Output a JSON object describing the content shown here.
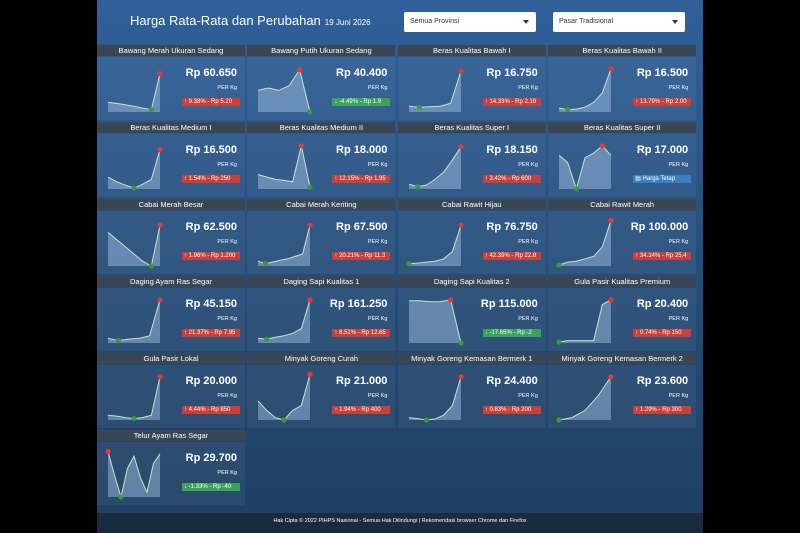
{
  "header": {
    "title": "Harga Rata-Rata dan Perubahan",
    "date": "19 Juni 2026"
  },
  "filters": [
    "Semua Provinsi",
    "Pasar Tradisional"
  ],
  "cards": [
    {
      "name": "Bawang Merah Ukuran Sedang",
      "price": "Rp 60.650",
      "unit": "PER Kg",
      "direction": "up",
      "change": "9.38% - Rp 5.20",
      "spark": [
        20,
        18,
        15,
        12,
        8,
        5,
        80
      ]
    },
    {
      "name": "Bawang Putih Ukuran Sedang",
      "price": "Rp 40.400",
      "unit": "PER Kg",
      "direction": "down",
      "change": "-4.49% - Rp 1.9",
      "spark": [
        45,
        50,
        45,
        55,
        88,
        0
      ]
    },
    {
      "name": "Beras Kualitas Bawah I",
      "price": "Rp 16.750",
      "unit": "PER Kg",
      "direction": "up",
      "change": "14.33% - Rp 2.10",
      "spark": [
        12,
        10,
        11,
        12,
        18,
        85
      ]
    },
    {
      "name": "Beras Kualitas Bawah II",
      "price": "Rp 16.500",
      "unit": "PER Kg",
      "direction": "up",
      "change": "13.79% - Rp 2.00",
      "spark": [
        8,
        5,
        6,
        10,
        20,
        40,
        90
      ]
    },
    {
      "name": "Beras Kualitas Medium I",
      "price": "Rp 16.500",
      "unit": "PER Kg",
      "direction": "up",
      "change": "1.54% - Rp 250",
      "spark": [
        25,
        15,
        8,
        2,
        10,
        20,
        82
      ]
    },
    {
      "name": "Beras Kualitas Medium II",
      "price": "Rp 18.000",
      "unit": "PER Kg",
      "direction": "up",
      "change": "12.15% - Rp 1.95",
      "spark": [
        30,
        25,
        20,
        18,
        15,
        90,
        4
      ]
    },
    {
      "name": "Beras Kualitas Super I",
      "price": "Rp 18.150",
      "unit": "PER Kg",
      "direction": "up",
      "change": "3.42% - Rp 600",
      "spark": [
        10,
        5,
        8,
        20,
        35,
        60,
        88
      ]
    },
    {
      "name": "Beras Kualitas Super II",
      "price": "Rp 17.000",
      "unit": "PER Kg",
      "direction": "flat",
      "change": "Harga Tetap",
      "spark": [
        70,
        55,
        0,
        65,
        75,
        90,
        70
      ]
    },
    {
      "name": "Cabai Merah Besar",
      "price": "Rp 62.500",
      "unit": "PER Kg",
      "direction": "up",
      "change": "1.96% - Rp 1.200",
      "spark": [
        70,
        55,
        40,
        25,
        10,
        0,
        85
      ]
    },
    {
      "name": "Cabai Merah Keriting",
      "price": "Rp 67.500",
      "unit": "PER Kg",
      "direction": "up",
      "change": "20.21% - Rp 11.3",
      "spark": [
        10,
        5,
        8,
        12,
        15,
        20,
        25,
        85
      ]
    },
    {
      "name": "Cabai Rawit Hijau",
      "price": "Rp 76.750",
      "unit": "PER Kg",
      "direction": "up",
      "change": "42.39% - Rp 22.8",
      "spark": [
        5,
        6,
        8,
        10,
        15,
        30,
        85
      ]
    },
    {
      "name": "Cabai Rawit Merah",
      "price": "Rp 100.000",
      "unit": "PER Kg",
      "direction": "up",
      "change": "34.14% - Rp 25.4",
      "spark": [
        2,
        8,
        10,
        15,
        20,
        40,
        95
      ]
    },
    {
      "name": "Daging Ayam Ras Segar",
      "price": "Rp 45.150",
      "unit": "PER Kg",
      "direction": "up",
      "change": "21.37% - Rp 7.95",
      "spark": [
        10,
        5,
        8,
        10,
        15,
        90
      ]
    },
    {
      "name": "Daging Sapi Kualitas 1",
      "price": "Rp 161.250",
      "unit": "PER Kg",
      "direction": "up",
      "change": "8.51% - Rp 12.65",
      "spark": [
        10,
        8,
        12,
        15,
        20,
        30,
        90
      ]
    },
    {
      "name": "Daging Sapi Kualitas 2",
      "price": "Rp 115.000",
      "unit": "PER Kg",
      "direction": "down",
      "change": "-17.65% - Rp -2",
      "spark": [
        88,
        88,
        86,
        86,
        90,
        0
      ]
    },
    {
      "name": "Gula Pasir Kualitas Premium",
      "price": "Rp 20.400",
      "unit": "PER Kg",
      "direction": "up",
      "change": "0.74% - Rp 150",
      "spark": [
        2,
        5,
        5,
        5,
        5,
        80,
        90
      ]
    },
    {
      "name": "Gula Pasir Lokal",
      "price": "Rp 20.000",
      "unit": "PER Kg",
      "direction": "up",
      "change": "4.44% - Rp 850",
      "spark": [
        10,
        8,
        5,
        3,
        5,
        10,
        90
      ]
    },
    {
      "name": "Minyak Goreng Curah",
      "price": "Rp 21.000",
      "unit": "PER Kg",
      "direction": "up",
      "change": "1.94% - Rp 400",
      "spark": [
        40,
        20,
        5,
        0,
        20,
        30,
        95
      ]
    },
    {
      "name": "Minyak Goreng Kemasan Bermerk 1",
      "price": "Rp 24.400",
      "unit": "PER Kg",
      "direction": "up",
      "change": "0.83% - Rp 200",
      "spark": [
        5,
        3,
        0,
        2,
        10,
        30,
        90
      ]
    },
    {
      "name": "Minyak Goreng Kemasan Bermerk 2",
      "price": "Rp 23.600",
      "unit": "PER Kg",
      "direction": "up",
      "change": "1.29% - Rp 300",
      "spark": [
        0,
        5,
        20,
        50,
        90
      ]
    },
    {
      "name": "Telur Ayam Ras Segar",
      "price": "Rp 29.700",
      "unit": "PER Kg",
      "direction": "down",
      "change": "-1.33% - Rp -40",
      "spark": [
        95,
        45,
        0,
        60,
        85,
        40,
        10,
        70,
        90
      ]
    }
  ],
  "footer": "Hak Cipta © 2022 PIHPS Nasional - Semua Hak Dilindungi | Rekomendasi browser Chrome dan Firefox"
}
